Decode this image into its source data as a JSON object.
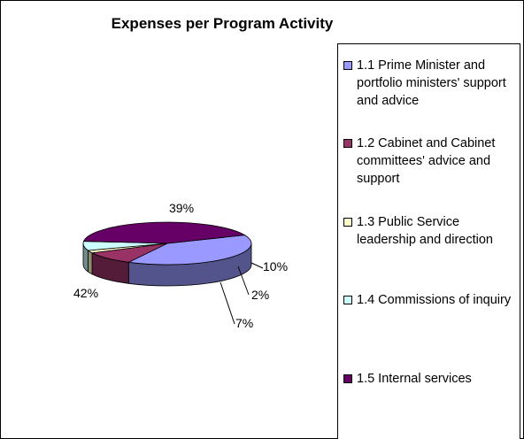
{
  "chart_data": {
    "type": "pie",
    "title": "Expenses per Program Activity",
    "legend_position": "right",
    "slices": [
      {
        "label": "1.1 Prime Minister and portfolio ministers' support and advice",
        "value": 39,
        "display": "39%",
        "color": "#9999ff"
      },
      {
        "label": "1.2 Cabinet and Cabinet committees' advice and support",
        "value": 10,
        "display": "10%",
        "color": "#993366"
      },
      {
        "label": "1.3 Public Service leadership and direction",
        "value": 2,
        "display": "2%",
        "color": "#ffffcc"
      },
      {
        "label": "1.4 Commissions of inquiry",
        "value": 7,
        "display": "7%",
        "color": "#ccffff"
      },
      {
        "label": "1.5 Internal services",
        "value": 42,
        "display": "42%",
        "color": "#660066"
      }
    ]
  }
}
